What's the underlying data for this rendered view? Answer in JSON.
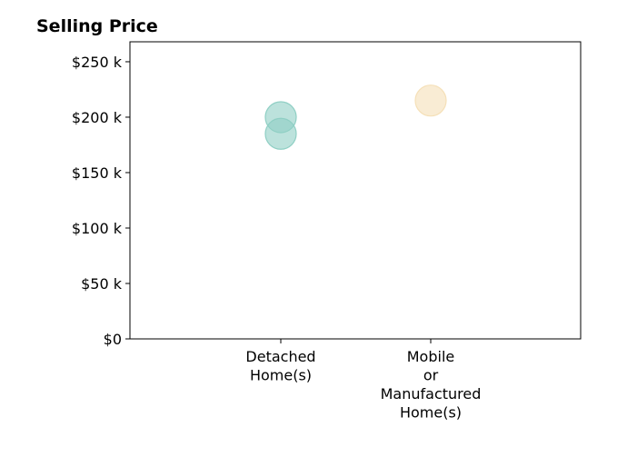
{
  "chart_data": {
    "type": "scatter",
    "title": "Selling Price",
    "xlabel": "",
    "ylabel": "",
    "categories": [
      [
        "Detached",
        "Home(s)"
      ],
      [
        "Mobile",
        "or",
        "Manufactured",
        "Home(s)"
      ]
    ],
    "ylim": [
      0,
      268000
    ],
    "yticks": [
      0,
      50000,
      100000,
      150000,
      200000,
      250000
    ],
    "ytick_labels": [
      "$0",
      "$50 k",
      "$100 k",
      "$150 k",
      "$200 k",
      "$250 k"
    ],
    "grid": false,
    "legend": "none",
    "points": [
      {
        "category": 0,
        "value": 200000,
        "color": "#8fcfc4"
      },
      {
        "category": 0,
        "value": 185000,
        "color": "#8fcfc4"
      },
      {
        "category": 1,
        "value": 215000,
        "color": "#f5e0b8"
      }
    ]
  }
}
